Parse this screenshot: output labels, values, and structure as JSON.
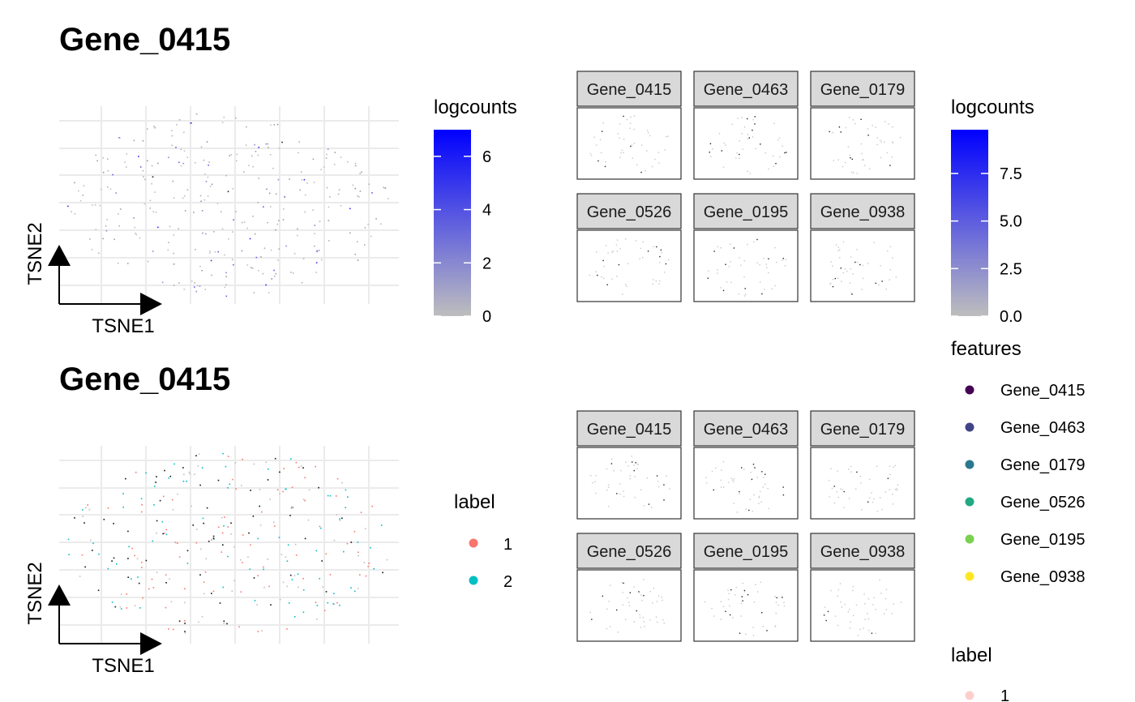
{
  "colors": {
    "grad_low": "#bebebe",
    "grad_high": "#0000ff",
    "label_1": "#f8766d",
    "label_2": "#00bfc4",
    "strip_fill": "#d9d9d9",
    "grid": "#ebebeb"
  },
  "chart_data": [
    {
      "type": "scatter",
      "title": "Gene_0415",
      "xlabel": "TSNE1",
      "ylabel": "TSNE2",
      "color_by": "logcounts",
      "grid": true,
      "legend": {
        "title": "logcounts",
        "type": "gradient",
        "ticks": [
          "0",
          "2",
          "4",
          "6"
        ],
        "range": [
          0,
          7.0
        ]
      }
    },
    {
      "type": "scatter",
      "facets": [
        "Gene_0415",
        "Gene_0463",
        "Gene_0179",
        "Gene_0526",
        "Gene_0195",
        "Gene_0938"
      ],
      "color_by": "logcounts",
      "legend": {
        "title": "logcounts",
        "type": "gradient",
        "ticks": [
          "0.0",
          "2.5",
          "5.0",
          "7.5"
        ],
        "range": [
          0,
          9.8
        ]
      }
    },
    {
      "type": "scatter",
      "title": "Gene_0415",
      "xlabel": "TSNE1",
      "ylabel": "TSNE2",
      "color_by": "label",
      "grid": true,
      "legend": {
        "title": "label",
        "entries": [
          {
            "name": "1",
            "color": "#f8766d"
          },
          {
            "name": "2",
            "color": "#00bfc4"
          }
        ]
      }
    },
    {
      "type": "scatter",
      "facets": [
        "Gene_0415",
        "Gene_0463",
        "Gene_0179",
        "Gene_0526",
        "Gene_0195",
        "Gene_0938"
      ],
      "color_by": "features",
      "legend": {
        "title": "features",
        "entries": [
          {
            "name": "Gene_0415",
            "color": "#440154"
          },
          {
            "name": "Gene_0463",
            "color": "#414487"
          },
          {
            "name": "Gene_0179",
            "color": "#2a788e"
          },
          {
            "name": "Gene_0526",
            "color": "#22a884"
          },
          {
            "name": "Gene_0195",
            "color": "#7ad151"
          },
          {
            "name": "Gene_0938",
            "color": "#fde725"
          }
        ]
      },
      "legend2": {
        "title": "label",
        "entries": [
          {
            "name": "1",
            "color": "#f8766d"
          }
        ]
      }
    }
  ]
}
